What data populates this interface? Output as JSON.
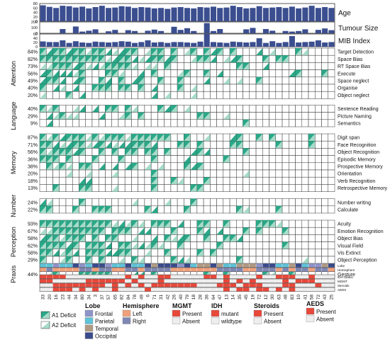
{
  "chart_data": {
    "type": "heatmap",
    "patients": [
      "33",
      "20",
      "16",
      "23",
      "44",
      "34",
      "80",
      "34",
      "3",
      "37",
      "57",
      "65",
      "82",
      "84",
      "78",
      "49",
      "6",
      "71",
      "31",
      "42",
      "26",
      "40",
      "79",
      "18",
      "28",
      "36",
      "64",
      "47",
      "13",
      "14",
      "35",
      "45",
      "19",
      "72",
      "12",
      "30",
      "63",
      "48",
      "83",
      "10",
      "41",
      "58",
      "72",
      "43",
      "25"
    ],
    "top_bars": [
      {
        "name": "Age",
        "ticks": [
          "80",
          "60",
          "40",
          "20",
          "0"
        ],
        "ylim": [
          0,
          80
        ],
        "values": [
          72,
          65,
          60,
          70,
          68,
          62,
          66,
          58,
          64,
          70,
          60,
          62,
          68,
          66,
          60,
          64,
          62,
          58,
          60,
          56,
          62,
          64,
          60,
          58,
          64,
          62,
          66,
          60,
          62,
          70,
          64,
          58,
          60,
          68,
          60,
          62,
          64,
          60,
          66,
          58,
          62,
          70,
          60,
          64,
          60
        ]
      },
      {
        "name": "Tumour Size",
        "ticks": [
          "200",
          "100",
          "0"
        ],
        "ylim": [
          0,
          200
        ],
        "values": [
          0,
          0,
          0,
          75,
          0,
          120,
          30,
          45,
          70,
          0,
          35,
          60,
          0,
          55,
          40,
          0,
          45,
          65,
          40,
          0,
          115,
          60,
          90,
          40,
          0,
          180,
          40,
          75,
          0,
          0,
          0,
          70,
          95,
          0,
          75,
          45,
          0,
          40,
          30,
          40,
          70,
          0,
          60,
          85,
          55
        ]
      },
      {
        "name": "MIB Index",
        "ticks": [
          "60",
          "40",
          "20",
          "0"
        ],
        "ylim": [
          0,
          60
        ],
        "values": [
          25,
          22,
          22,
          30,
          18,
          26,
          20,
          18,
          24,
          22,
          20,
          22,
          26,
          24,
          18,
          22,
          30,
          20,
          22,
          18,
          22,
          22,
          20,
          18,
          24,
          60,
          22,
          20,
          18,
          24,
          22,
          20,
          22,
          40,
          18,
          26,
          18,
          22,
          50,
          20,
          22,
          24,
          30,
          20,
          22
        ]
      }
    ],
    "groups": [
      {
        "name": "Attention",
        "rows": [
          {
            "label": "Target Detection",
            "pct": "84%",
            "seed": 0,
            "p1": 0.55,
            "p2": 0.29
          },
          {
            "label": "Space Bias",
            "pct": "82%",
            "seed": 1,
            "p1": 0.5,
            "p2": 0.32
          },
          {
            "label": "RT Space Bias",
            "pct": "73%",
            "seed": 2,
            "p1": 0.45,
            "p2": 0.28
          },
          {
            "label": "Execute",
            "pct": "56%",
            "seed": 3,
            "p1": 0.3,
            "p2": 0.26
          },
          {
            "label": "Space neglect",
            "pct": "49%",
            "seed": 4,
            "p1": 0.3,
            "p2": 0.19
          },
          {
            "label": "Organise",
            "pct": "40%",
            "seed": 5,
            "p1": 0.25,
            "p2": 0.15
          },
          {
            "label": "Object neglect",
            "pct": "20%",
            "seed": 6,
            "p1": 0.1,
            "p2": 0.1
          }
        ]
      },
      {
        "name": "Language",
        "rows": [
          {
            "label": "Sentence Reading",
            "pct": "40%",
            "seed": 7,
            "p1": 0.2,
            "p2": 0.2
          },
          {
            "label": "Picture Naming",
            "pct": "29%",
            "seed": 8,
            "p1": 0.15,
            "p2": 0.14
          },
          {
            "label": "Semantics",
            "pct": "9%",
            "seed": 9,
            "p1": 0.05,
            "p2": 0.04
          }
        ]
      },
      {
        "name": "Memory",
        "rows": [
          {
            "label": "Digit span",
            "pct": "87%",
            "seed": 10,
            "p1": 0.55,
            "p2": 0.32
          },
          {
            "label": "Face Recognition",
            "pct": "71%",
            "seed": 11,
            "p1": 0.45,
            "p2": 0.26
          },
          {
            "label": "Object Recognition",
            "pct": "56%",
            "seed": 12,
            "p1": 0.3,
            "p2": 0.26
          },
          {
            "label": "Episodic Memory",
            "pct": "36%",
            "seed": 13,
            "p1": 0.2,
            "p2": 0.16
          },
          {
            "label": "Prospective Memory",
            "pct": "38%",
            "seed": 14,
            "p1": 0.18,
            "p2": 0.2
          },
          {
            "label": "Orientation",
            "pct": "20%",
            "seed": 15,
            "p1": 0.1,
            "p2": 0.1
          },
          {
            "label": "Verb Recognition",
            "pct": "18%",
            "seed": 16,
            "p1": 0.08,
            "p2": 0.1
          },
          {
            "label": "Retrospective Memory",
            "pct": "13%",
            "seed": 17,
            "p1": 0.07,
            "p2": 0.06
          }
        ]
      },
      {
        "name": "Number",
        "rows": [
          {
            "label": "Number writing",
            "pct": "24%",
            "seed": 18,
            "p1": 0.12,
            "p2": 0.12
          },
          {
            "label": "Calculate",
            "pct": "22%",
            "seed": 19,
            "p1": 0.12,
            "p2": 0.1
          }
        ]
      },
      {
        "name": "Perception",
        "rows": [
          {
            "label": "Acuity",
            "pct": "93%",
            "seed": 20,
            "p1": 0.6,
            "p2": 0.33
          },
          {
            "label": "Emotion Recognition",
            "pct": "67%",
            "seed": 21,
            "p1": 0.4,
            "p2": 0.27
          },
          {
            "label": "Object Bias",
            "pct": "58%",
            "seed": 22,
            "p1": 0.35,
            "p2": 0.23
          },
          {
            "label": "Visual Field",
            "pct": "62%",
            "seed": 23,
            "p1": 0.4,
            "p2": 0.22
          },
          {
            "label": "Vis Extinct",
            "pct": "58%",
            "seed": 24,
            "p1": 0.35,
            "p2": 0.23
          },
          {
            "label": "Object Perception",
            "pct": "29%",
            "seed": 25,
            "p1": 0.15,
            "p2": 0.14
          }
        ]
      },
      {
        "name": "Praxis",
        "rows": [
          {
            "label": "Gesture",
            "pct": "44%",
            "seed": 26,
            "p1": 0.25,
            "p2": 0.19
          }
        ]
      }
    ],
    "annotation_rows": [
      "Lobe",
      "Hemisphere",
      "IDH Status",
      "MGMT",
      "Steroids",
      "AEDS"
    ],
    "colors": {
      "bar": "#3b4e8f",
      "a1": "#2aa888",
      "a2": "#a6dcc9",
      "grid": "#333333",
      "frontal": "#8e94c9",
      "parietal": "#5ec3d8",
      "temporal": "#b09a84",
      "occipital": "#3a4b8c",
      "left": "#f0a07a",
      "right": "#7f87b3",
      "present": "#e8483a",
      "absent": "#eeeeee"
    },
    "legend": {
      "deficit": {
        "a1": "A1 Deficit",
        "a2": "A2 Deficit"
      },
      "lobe": {
        "title": "Lobe",
        "items": [
          "Frontal",
          "Parietal",
          "Temporal",
          "Occipital"
        ]
      },
      "hemisphere": {
        "title": "Hemisphere",
        "items": [
          "Left",
          "Right"
        ]
      },
      "mgmt": {
        "title": "MGMT",
        "items": [
          "Present",
          "Absent"
        ]
      },
      "idh": {
        "title": "IDH",
        "items": [
          "mutant",
          "wildtype"
        ]
      },
      "steroids": {
        "title": "Steroids",
        "items": [
          "Present",
          "Absent"
        ]
      },
      "aeds": {
        "title": "AEDS",
        "items": [
          "Present",
          "Absent"
        ]
      }
    }
  }
}
